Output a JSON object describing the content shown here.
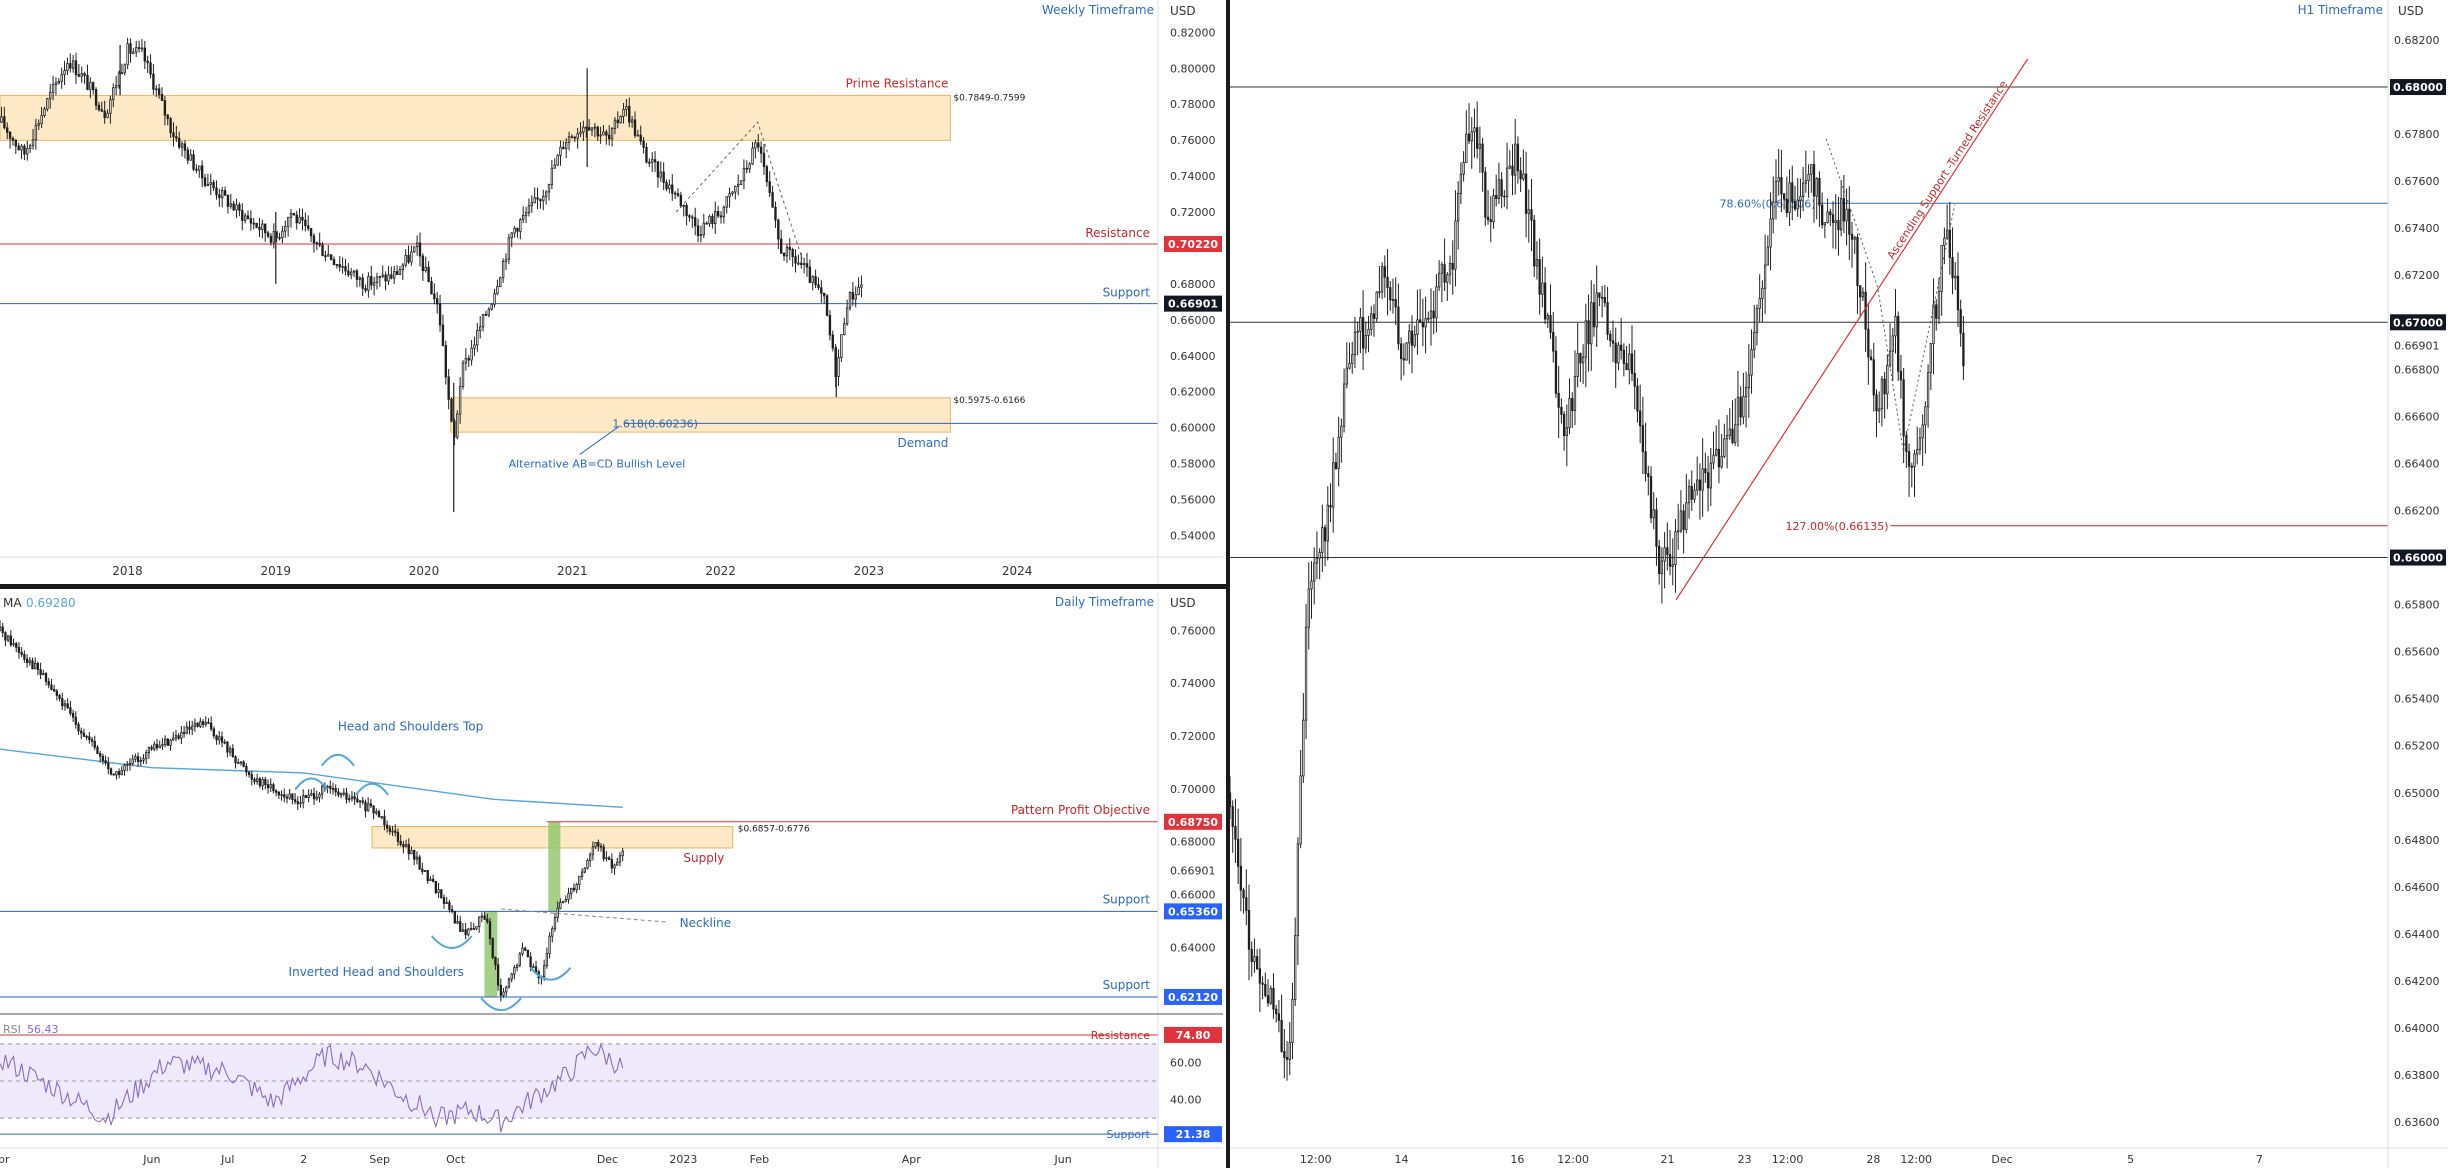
{
  "colors": {
    "candle": "#1f1f1f",
    "resistance": "#e0333b",
    "support_line": "#2962c9",
    "zone_fill": "#fde3b6",
    "zone_border": "#e8b45c",
    "annotation_blue": "#2e6bb8",
    "annotation_red": "#c2282c",
    "ma": "#58a6d6",
    "rsi": "#8c6bbd",
    "rsi_band": "#efeafb",
    "tag_dark": "#131722",
    "tag_red": "#e0333b",
    "tag_blue": "#2962ff",
    "green_bar": "#8fc46a",
    "divider": "#1a1a1a"
  },
  "chart_data": [
    {
      "id": "weekly",
      "type": "candlestick",
      "title": "Weekly Timeframe",
      "currency": "USD",
      "y_ticks": [
        "0.82000",
        "0.80000",
        "0.78000",
        "0.76000",
        "0.74000",
        "0.72000",
        "0.68000",
        "0.66000",
        "0.64000",
        "0.62000",
        "0.60000",
        "0.58000",
        "0.56000",
        "0.54000"
      ],
      "ylim": [
        0.528,
        0.838
      ],
      "x_ticks": [
        "2018",
        "2019",
        "2020",
        "2021",
        "2022",
        "2023",
        "2024"
      ],
      "x_tick_years": [
        2018,
        2019,
        2020,
        2021,
        2022,
        2023,
        2024
      ],
      "x_range": [
        2017.14,
        2024.95
      ],
      "path": [
        [
          2017.15,
          0.77
        ],
        [
          2017.3,
          0.752
        ],
        [
          2017.45,
          0.78
        ],
        [
          2017.6,
          0.805
        ],
        [
          2017.7,
          0.795
        ],
        [
          2017.85,
          0.775
        ],
        [
          2018.0,
          0.81
        ],
        [
          2018.1,
          0.808
        ],
        [
          2018.3,
          0.765
        ],
        [
          2018.5,
          0.74
        ],
        [
          2018.75,
          0.72
        ],
        [
          2019.0,
          0.705
        ],
        [
          2019.1,
          0.72
        ],
        [
          2019.3,
          0.7
        ],
        [
          2019.6,
          0.68
        ],
        [
          2019.8,
          0.685
        ],
        [
          2019.95,
          0.7
        ],
        [
          2020.1,
          0.665
        ],
        [
          2020.2,
          0.59
        ],
        [
          2020.25,
          0.63
        ],
        [
          2020.45,
          0.67
        ],
        [
          2020.6,
          0.71
        ],
        [
          2020.8,
          0.73
        ],
        [
          2020.95,
          0.76
        ],
        [
          2021.1,
          0.77
        ],
        [
          2021.25,
          0.76
        ],
        [
          2021.35,
          0.78
        ],
        [
          2021.5,
          0.75
        ],
        [
          2021.7,
          0.73
        ],
        [
          2021.85,
          0.71
        ],
        [
          2022.0,
          0.72
        ],
        [
          2022.15,
          0.74
        ],
        [
          2022.25,
          0.76
        ],
        [
          2022.4,
          0.7
        ],
        [
          2022.55,
          0.69
        ],
        [
          2022.7,
          0.67
        ],
        [
          2022.78,
          0.63
        ],
        [
          2022.85,
          0.67
        ],
        [
          2022.95,
          0.68
        ]
      ],
      "wicks": [
        [
          2020.2,
          0.553,
          0.625
        ],
        [
          2021.1,
          0.745,
          0.8
        ],
        [
          2019.0,
          0.68,
          0.72
        ],
        [
          2017.95,
          0.785,
          0.813
        ],
        [
          2022.78,
          0.617,
          0.645
        ]
      ],
      "levels": [
        {
          "name": "Resistance",
          "value": 0.7022,
          "tag": "0.70220",
          "color": "red"
        },
        {
          "name": "Support",
          "value": 0.66901,
          "tag": "0.66901",
          "color": "dark"
        }
      ],
      "zones": [
        {
          "name": "Prime Resistance",
          "top": 0.7849,
          "bottom": 0.7599,
          "x_from": 2017.14,
          "x_to": 2023.55,
          "range_label": "$0.7849-0.7599"
        },
        {
          "name": "Demand",
          "top": 0.6166,
          "bottom": 0.5975,
          "x_from": 2020.18,
          "x_to": 2023.55,
          "range_label": "$0.5975-0.6166"
        }
      ],
      "annotations": {
        "fib": "1.618(0.60236)",
        "fib_value": 0.60236,
        "abcd": "Alternative AB=CD Bullish Level"
      },
      "abcd_dashes": [
        [
          2021.7,
          0.72
        ],
        [
          2022.25,
          0.77
        ],
        [
          2022.55,
          0.694
        ]
      ]
    },
    {
      "id": "daily",
      "type": "candlestick",
      "title": "Daily Timeframe",
      "currency": "USD",
      "ma_label": "MA",
      "ma_value": "0.69280",
      "y_ticks": [
        "0.76000",
        "0.74000",
        "0.72000",
        "0.70000",
        "0.68000",
        "0.66901",
        "0.66000",
        "0.64000"
      ],
      "ylim": [
        0.6155,
        0.7745
      ],
      "x_ticks": [
        "Apr",
        "Jun",
        "Jul",
        "2",
        "Sep",
        "Oct",
        "Dec",
        "2023",
        "Feb",
        "Apr",
        "Jun"
      ],
      "x_tick_months": [
        0,
        2,
        3,
        4,
        5,
        6,
        8,
        9,
        10,
        12,
        14
      ],
      "x_range": [
        0,
        15.25
      ],
      "path": [
        [
          0.0,
          0.76
        ],
        [
          0.5,
          0.745
        ],
        [
          1.0,
          0.725
        ],
        [
          1.5,
          0.705
        ],
        [
          2.0,
          0.715
        ],
        [
          2.7,
          0.725
        ],
        [
          3.3,
          0.705
        ],
        [
          3.9,
          0.695
        ],
        [
          4.3,
          0.7
        ],
        [
          4.7,
          0.695
        ],
        [
          5.0,
          0.69
        ],
        [
          5.35,
          0.678
        ],
        [
          5.8,
          0.66
        ],
        [
          6.1,
          0.645
        ],
        [
          6.4,
          0.652
        ],
        [
          6.6,
          0.62
        ],
        [
          6.9,
          0.64
        ],
        [
          7.1,
          0.627
        ],
        [
          7.35,
          0.655
        ],
        [
          7.6,
          0.665
        ],
        [
          7.85,
          0.68
        ],
        [
          8.05,
          0.67
        ],
        [
          8.2,
          0.675
        ]
      ],
      "ma_path": [
        [
          0.0,
          0.715
        ],
        [
          2.0,
          0.708
        ],
        [
          4.0,
          0.706
        ],
        [
          5.5,
          0.7
        ],
        [
          6.5,
          0.696
        ],
        [
          8.2,
          0.693
        ]
      ],
      "levels": [
        {
          "name": "Pattern Profit Objective",
          "value": 0.6875,
          "tag": "0.68750",
          "color": "red"
        },
        {
          "name": "Support",
          "value": 0.6536,
          "tag": "0.65360",
          "color": "blue"
        },
        {
          "name": "Support",
          "value": 0.6212,
          "tag": "0.62120",
          "color": "blue"
        }
      ],
      "zones": [
        {
          "name": "Supply",
          "top": 0.6857,
          "bottom": 0.6776,
          "x_from": 4.9,
          "x_to": 9.65,
          "range_label": "$0.6857-0.6776"
        }
      ],
      "annotations": {
        "hs_top": "Head and Shoulders Top",
        "inv_hs": "Inverted Head and Shoulders",
        "neckline": "Neckline"
      },
      "rsi": {
        "label": "RSI",
        "value": "56.43",
        "ticks": [
          "60.00",
          "40.00"
        ],
        "levels": [
          {
            "name": "Resistance",
            "value": "74.80",
            "color": "red"
          },
          {
            "name": "Support",
            "value": "21.38",
            "color": "blue"
          }
        ],
        "ylim": [
          15,
          85
        ],
        "path": [
          [
            0.0,
            62
          ],
          [
            0.8,
            44
          ],
          [
            1.4,
            30
          ],
          [
            2.2,
            60
          ],
          [
            3.0,
            55
          ],
          [
            3.6,
            38
          ],
          [
            4.3,
            64
          ],
          [
            4.8,
            58
          ],
          [
            5.3,
            42
          ],
          [
            5.8,
            30
          ],
          [
            6.2,
            34
          ],
          [
            6.6,
            28
          ],
          [
            7.0,
            40
          ],
          [
            7.5,
            54
          ],
          [
            7.8,
            68
          ],
          [
            8.2,
            57
          ]
        ]
      }
    },
    {
      "id": "h1",
      "type": "candlestick",
      "title": "H1 Timeframe",
      "currency": "USD",
      "y_ticks": [
        "0.68200",
        "0.67800",
        "0.67600",
        "0.67400",
        "0.67200",
        "0.66901",
        "0.66800",
        "0.66600",
        "0.66400",
        "0.66200",
        "0.65800",
        "0.65600",
        "0.65400",
        "0.65200",
        "0.65000",
        "0.64800",
        "0.64600",
        "0.64400",
        "0.64200",
        "0.64000",
        "0.63800",
        "0.63600"
      ],
      "ylim": [
        0.6349,
        0.6837
      ],
      "x_ticks": [
        "12:00",
        "14",
        "16",
        "12:00",
        "21",
        "23",
        "12:00",
        "28",
        "12:00",
        "Dec",
        "5",
        "7"
      ],
      "x_tick_positions": [
        1.0,
        2.0,
        3.35,
        4.0,
        5.1,
        6.0,
        6.5,
        7.5,
        8.0,
        9.0,
        10.5,
        12.0
      ],
      "x_range": [
        0,
        13.5
      ],
      "path": [
        [
          0.0,
          0.65
        ],
        [
          0.1,
          0.647
        ],
        [
          0.25,
          0.643
        ],
        [
          0.4,
          0.642
        ],
        [
          0.55,
          0.64
        ],
        [
          0.7,
          0.639
        ],
        [
          0.8,
          0.648
        ],
        [
          0.9,
          0.658
        ],
        [
          1.0,
          0.66
        ],
        [
          1.15,
          0.662
        ],
        [
          1.3,
          0.666
        ],
        [
          1.45,
          0.67
        ],
        [
          1.6,
          0.669
        ],
        [
          1.8,
          0.672
        ],
        [
          2.0,
          0.669
        ],
        [
          2.2,
          0.67
        ],
        [
          2.4,
          0.671
        ],
        [
          2.6,
          0.673
        ],
        [
          2.7,
          0.677
        ],
        [
          2.85,
          0.679
        ],
        [
          3.0,
          0.674
        ],
        [
          3.2,
          0.676
        ],
        [
          3.35,
          0.677
        ],
        [
          3.5,
          0.674
        ],
        [
          3.7,
          0.67
        ],
        [
          3.9,
          0.665
        ],
        [
          4.1,
          0.669
        ],
        [
          4.3,
          0.671
        ],
        [
          4.5,
          0.669
        ],
        [
          4.7,
          0.668
        ],
        [
          4.85,
          0.664
        ],
        [
          5.0,
          0.66
        ],
        [
          5.15,
          0.66
        ],
        [
          5.3,
          0.662
        ],
        [
          5.5,
          0.663
        ],
        [
          5.8,
          0.665
        ],
        [
          6.0,
          0.667
        ],
        [
          6.2,
          0.672
        ],
        [
          6.4,
          0.676
        ],
        [
          6.55,
          0.675
        ],
        [
          6.75,
          0.677
        ],
        [
          6.95,
          0.674
        ],
        [
          7.2,
          0.675
        ],
        [
          7.4,
          0.67
        ],
        [
          7.55,
          0.666
        ],
        [
          7.75,
          0.67
        ],
        [
          7.9,
          0.664
        ],
        [
          8.05,
          0.665
        ],
        [
          8.2,
          0.67
        ],
        [
          8.35,
          0.674
        ],
        [
          8.5,
          0.67
        ],
        [
          8.55,
          0.668
        ]
      ],
      "levels": [
        {
          "name": "",
          "value": 0.68,
          "tag": "0.68000",
          "color": "dark"
        },
        {
          "name": "",
          "value": 0.67,
          "tag": "0.67000",
          "color": "dark"
        },
        {
          "name": "",
          "value": 0.66,
          "tag": "0.66000",
          "color": "dark"
        }
      ],
      "current": "0.66901",
      "trendline": {
        "label": "Ascending Support -Turned Resistance",
        "from": [
          5.2,
          0.6582
        ],
        "to": [
          9.3,
          0.6812
        ]
      },
      "fib_786": {
        "label": "78.60%(0.67506)",
        "value": 0.67506,
        "x_from": 6.85,
        "x_to": 13.5
      },
      "fib_127": {
        "label": "127.00%(0.66135)",
        "value": 0.66135,
        "x_from": 7.7,
        "x_to": 13.5
      },
      "abcd_dashes": [
        [
          6.95,
          0.6778
        ],
        [
          7.55,
          0.6715
        ],
        [
          7.85,
          0.6645
        ],
        [
          8.45,
          0.675
        ]
      ]
    }
  ]
}
